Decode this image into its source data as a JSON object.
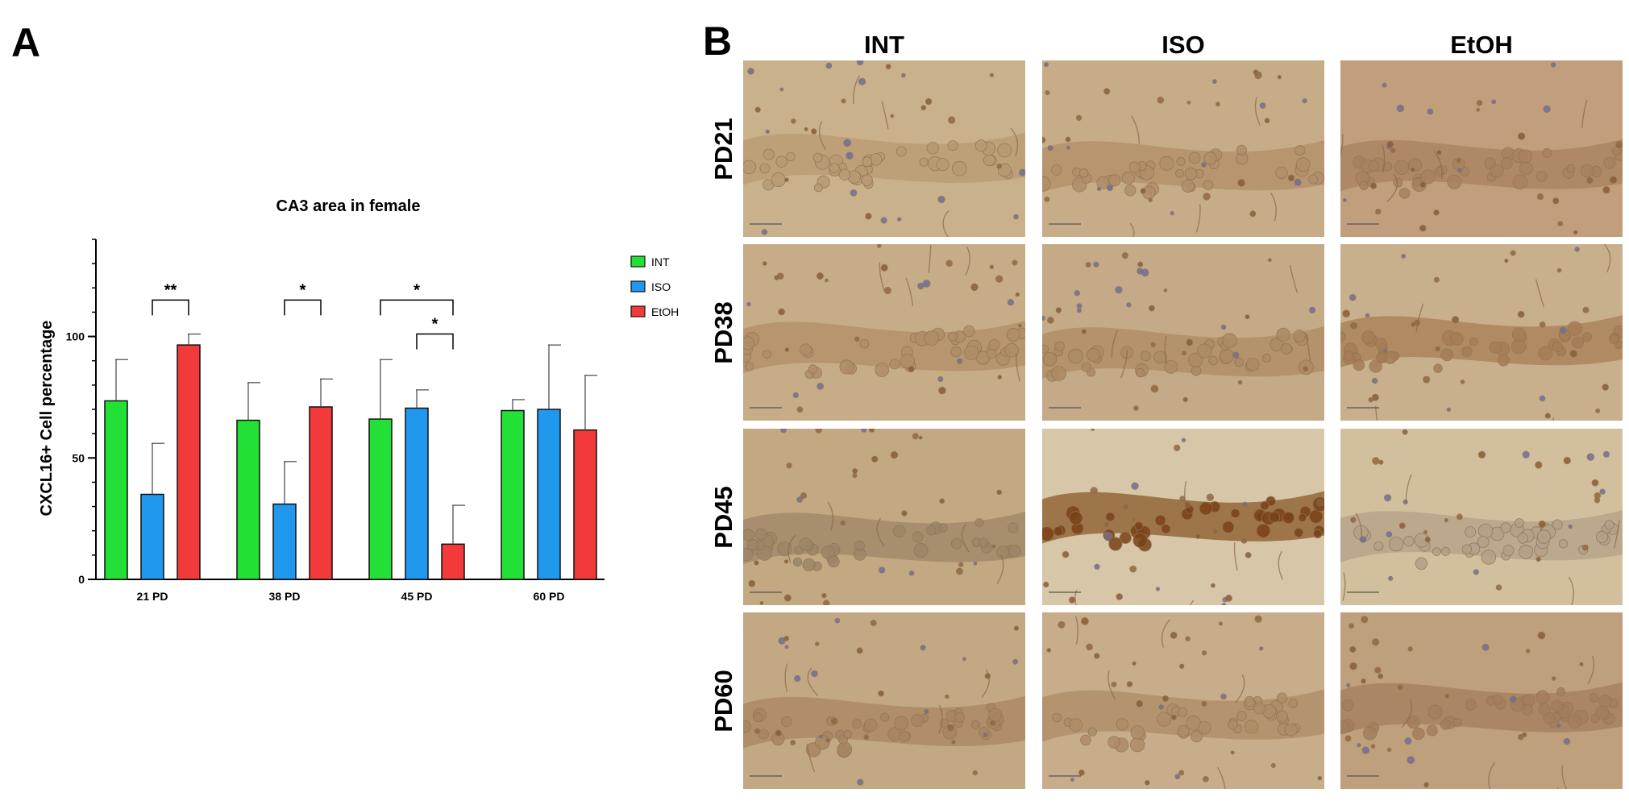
{
  "panel_a": {
    "letter": "A"
  },
  "panel_b": {
    "letter": "B",
    "columns": [
      "INT",
      "ISO",
      "EtOH"
    ],
    "rows": [
      "PD21",
      "PD38",
      "PD45",
      "PD60"
    ]
  },
  "colors": {
    "INT": "#22e036",
    "ISO": "#1f98ee",
    "EtOH": "#f23a3a"
  },
  "chart_data": {
    "type": "bar",
    "title": "CA3 area in female",
    "xlabel": "",
    "ylabel": "CXCL16+ Cell percentage",
    "ylim": [
      0,
      140
    ],
    "yticks": [
      0,
      50,
      100
    ],
    "yticks_labels": [
      "0",
      "50",
      "100"
    ],
    "categories": [
      "21 PD",
      "38 PD",
      "45 PD",
      "60 PD"
    ],
    "series": [
      {
        "name": "INT",
        "values": [
          73.5,
          65.5,
          66,
          69.5
        ],
        "errors": [
          17,
          15.5,
          24.5,
          4.5
        ]
      },
      {
        "name": "ISO",
        "values": [
          35,
          31,
          70.5,
          70
        ],
        "errors": [
          21,
          17.5,
          7.5,
          26.5
        ]
      },
      {
        "name": "EtOH",
        "values": [
          96.5,
          71,
          14.5,
          61.5
        ],
        "errors": [
          4.5,
          11.5,
          16,
          22.5
        ]
      }
    ],
    "legend": {
      "placement": "right",
      "entries": [
        "INT",
        "ISO",
        "EtOH"
      ]
    },
    "significance": [
      {
        "category": "21 PD",
        "from": "ISO",
        "to": "EtOH",
        "label": "**",
        "y": 115
      },
      {
        "category": "38 PD",
        "from": "ISO",
        "to": "EtOH",
        "label": "*",
        "y": 115
      },
      {
        "category": "45 PD",
        "from": "INT",
        "to": "EtOH",
        "label": "*",
        "y": 115
      },
      {
        "category": "45 PD",
        "from": "ISO",
        "to": "EtOH",
        "label": "*",
        "y": 101
      }
    ]
  }
}
